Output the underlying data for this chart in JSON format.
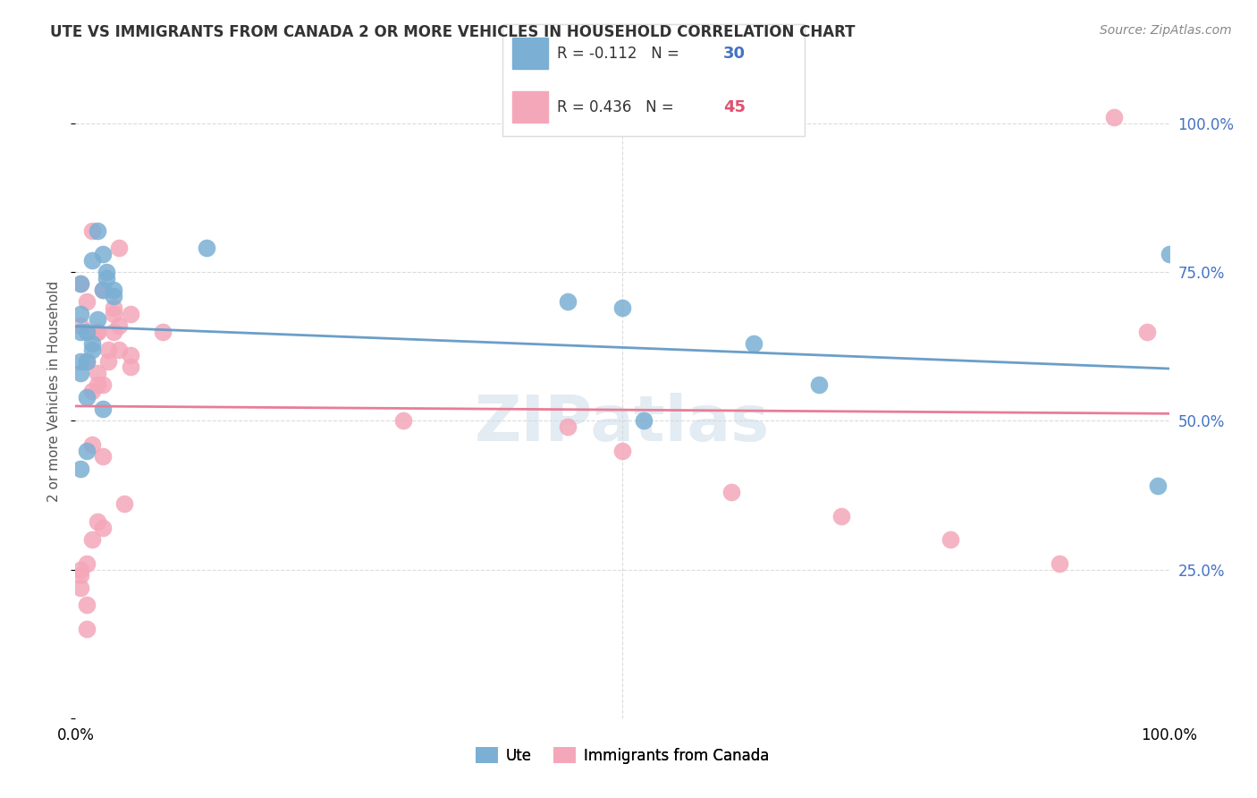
{
  "title": "UTE VS IMMIGRANTS FROM CANADA 2 OR MORE VEHICLES IN HOUSEHOLD CORRELATION CHART",
  "source": "Source: ZipAtlas.com",
  "xlabel_bottom": "",
  "ylabel": "2 or more Vehicles in Household",
  "legend_label1": "Ute",
  "legend_label2": "Immigrants from Canada",
  "r1": -0.112,
  "n1": 30,
  "r2": 0.436,
  "n2": 45,
  "color_blue": "#7bafd4",
  "color_pink": "#f4a7b9",
  "color_blue_line": "#6b9ec8",
  "color_pink_line": "#e87d96",
  "color_blue_text": "#4472c4",
  "color_pink_text": "#e05070",
  "ute_x": [
    0.5,
    2.0,
    1.0,
    0.5,
    1.5,
    2.5,
    2.5,
    2.8,
    2.8,
    3.5,
    3.5,
    1.0,
    1.5,
    2.0,
    1.5,
    0.5,
    0.5,
    0.5,
    1.0,
    1.0,
    0.5,
    2.5,
    50.0,
    68.0,
    52.0,
    62.0,
    45.0,
    99.0,
    100.0,
    12.0
  ],
  "ute_y": [
    68.0,
    82.0,
    65.0,
    73.0,
    77.0,
    78.0,
    72.0,
    75.0,
    74.0,
    72.0,
    71.0,
    60.0,
    63.0,
    67.0,
    62.0,
    65.0,
    60.0,
    58.0,
    54.0,
    45.0,
    42.0,
    52.0,
    69.0,
    56.0,
    50.0,
    63.0,
    70.0,
    39.0,
    78.0,
    79.0
  ],
  "canada_x": [
    1.0,
    1.0,
    2.0,
    3.5,
    4.0,
    2.5,
    2.0,
    3.5,
    3.5,
    4.0,
    5.0,
    2.0,
    3.0,
    4.0,
    5.0,
    1.0,
    2.0,
    3.0,
    1.5,
    2.5,
    5.0,
    1.5,
    2.5,
    4.5,
    1.5,
    2.0,
    2.5,
    1.0,
    0.5,
    0.5,
    0.5,
    0.5,
    0.5,
    1.0,
    1.5,
    8.0,
    30.0,
    45.0,
    50.0,
    60.0,
    70.0,
    80.0,
    90.0,
    95.0,
    98.0
  ],
  "canada_y": [
    19.0,
    15.0,
    65.0,
    69.0,
    79.0,
    72.0,
    65.0,
    68.0,
    65.0,
    66.0,
    68.0,
    58.0,
    62.0,
    62.0,
    59.0,
    60.0,
    56.0,
    60.0,
    55.0,
    56.0,
    61.0,
    46.0,
    44.0,
    36.0,
    30.0,
    33.0,
    32.0,
    26.0,
    24.0,
    25.0,
    22.0,
    66.0,
    73.0,
    70.0,
    82.0,
    65.0,
    50.0,
    49.0,
    45.0,
    38.0,
    34.0,
    30.0,
    26.0,
    101.0,
    65.0
  ],
  "xlim": [
    0,
    100
  ],
  "ylim": [
    0,
    110
  ],
  "yticks": [
    0,
    25,
    50,
    75,
    100
  ],
  "ytick_labels": [
    "",
    "25.0%",
    "50.0%",
    "75.0%",
    "100.0%"
  ],
  "xtick_labels": [
    "0.0%",
    "100.0%"
  ],
  "background": "#ffffff",
  "watermark": "ZIPatlas",
  "watermark_color": "#c8d8e8"
}
